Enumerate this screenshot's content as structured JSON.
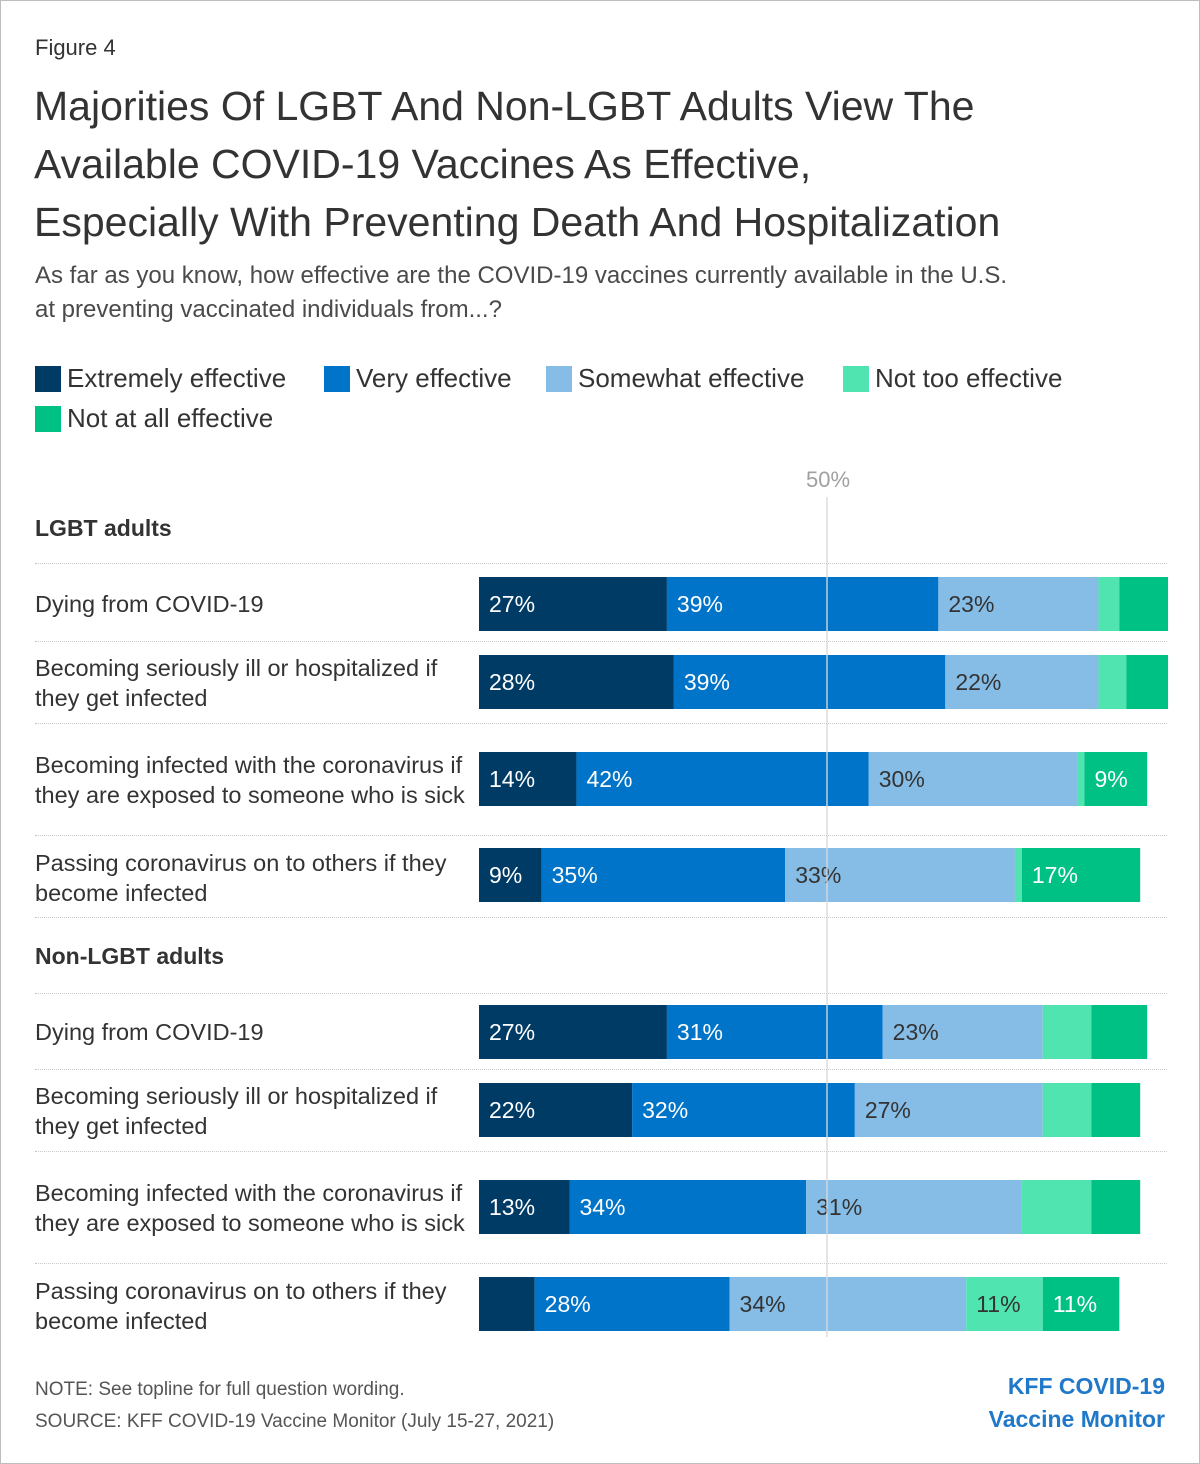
{
  "figure_label": "Figure 4",
  "title_lines": [
    "Majorities Of LGBT And Non-LGBT Adults View The",
    "Available COVID-19 Vaccines As Effective,",
    "Especially With Preventing Death And Hospitalization"
  ],
  "subtitle_lines": [
    "As far as you know, how effective are the COVID-19 vaccines currently available in the U.S.",
    "at preventing vaccinated individuals from...?"
  ],
  "legend": [
    {
      "label": "Extremely effective",
      "color": "#003b66"
    },
    {
      "label": "Very effective",
      "color": "#0074c8"
    },
    {
      "label": "Somewhat effective",
      "color": "#86bde6"
    },
    {
      "label": "Not too effective",
      "color": "#4fe4b0"
    },
    {
      "label": "Not at all effective",
      "color": "#00c184"
    }
  ],
  "axis_tick_label": "50%",
  "note": "NOTE: See topline for full question wording.",
  "source": "SOURCE: KFF COVID-19 Vaccine Monitor (July 15-27, 2021)",
  "brand_lines": [
    "KFF COVID-19",
    "Vaccine Monitor"
  ],
  "chart_data": {
    "type": "bar",
    "orientation": "horizontal",
    "stacked": true,
    "xlim": [
      0,
      100
    ],
    "axis_reference": 50,
    "series_names": [
      "Extremely effective",
      "Very effective",
      "Somewhat effective",
      "Not too effective",
      "Not at all effective"
    ],
    "groups": [
      {
        "name": "LGBT adults",
        "rows": [
          {
            "label": "Dying from COVID-19",
            "values": [
              27,
              39,
              23,
              3,
              7
            ],
            "labels": [
              "27%",
              "39%",
              "23%",
              "",
              ""
            ]
          },
          {
            "label": "Becoming seriously ill or hospitalized if they get infected",
            "values": [
              28,
              39,
              22,
              4,
              6
            ],
            "labels": [
              "28%",
              "39%",
              "22%",
              "",
              ""
            ]
          },
          {
            "label": "Becoming infected with the coronavirus if they are exposed to someone who is sick",
            "values": [
              14,
              42,
              30,
              1,
              9
            ],
            "labels": [
              "14%",
              "42%",
              "30%",
              "",
              "9%"
            ]
          },
          {
            "label": "Passing coronavirus on to others if they become infected",
            "values": [
              9,
              35,
              33,
              1,
              17
            ],
            "labels": [
              "9%",
              "35%",
              "33%",
              "",
              "17%"
            ]
          }
        ]
      },
      {
        "name": "Non-LGBT adults",
        "rows": [
          {
            "label": "Dying from COVID-19",
            "values": [
              27,
              31,
              23,
              7,
              8
            ],
            "labels": [
              "27%",
              "31%",
              "23%",
              "",
              ""
            ]
          },
          {
            "label": "Becoming seriously ill or hospitalized if they get infected",
            "values": [
              22,
              32,
              27,
              7,
              7
            ],
            "labels": [
              "22%",
              "32%",
              "27%",
              "",
              ""
            ]
          },
          {
            "label": "Becoming infected with the coronavirus if they are exposed to someone who is sick",
            "values": [
              13,
              34,
              31,
              10,
              7
            ],
            "labels": [
              "13%",
              "34%",
              "31%",
              "",
              ""
            ]
          },
          {
            "label": "Passing coronavirus on to others if they become infected",
            "values": [
              8,
              28,
              34,
              11,
              11
            ],
            "labels": [
              "",
              "28%",
              "34%",
              "11%",
              "11%"
            ]
          }
        ]
      }
    ]
  }
}
